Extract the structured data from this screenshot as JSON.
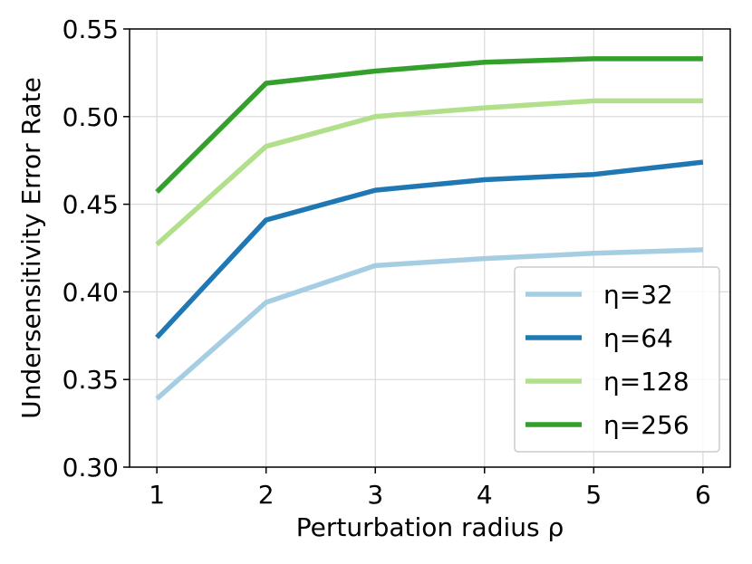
{
  "chart_data": {
    "type": "line",
    "x": [
      1,
      2,
      3,
      4,
      5,
      6
    ],
    "xticks": [
      "1",
      "2",
      "3",
      "4",
      "5",
      "6"
    ],
    "yticks": [
      "0.30",
      "0.35",
      "0.40",
      "0.45",
      "0.50",
      "0.55"
    ],
    "xlabel": "Perturbation radius ρ",
    "ylabel": "Undersensitivity Error Rate",
    "xlim": [
      0.75,
      6.25
    ],
    "ylim": [
      0.3,
      0.55
    ],
    "grid": true,
    "legend_position": "lower-right",
    "series": [
      {
        "name": "η=32",
        "color": "#a6cee3",
        "values": [
          0.339,
          0.394,
          0.415,
          0.419,
          0.422,
          0.424
        ]
      },
      {
        "name": "η=64",
        "color": "#1f78b4",
        "values": [
          0.374,
          0.441,
          0.458,
          0.464,
          0.467,
          0.474
        ]
      },
      {
        "name": "η=128",
        "color": "#b2df8a",
        "values": [
          0.427,
          0.483,
          0.5,
          0.505,
          0.509,
          0.509
        ]
      },
      {
        "name": "η=256",
        "color": "#33a02c",
        "values": [
          0.457,
          0.519,
          0.526,
          0.531,
          0.533,
          0.533
        ]
      }
    ]
  }
}
